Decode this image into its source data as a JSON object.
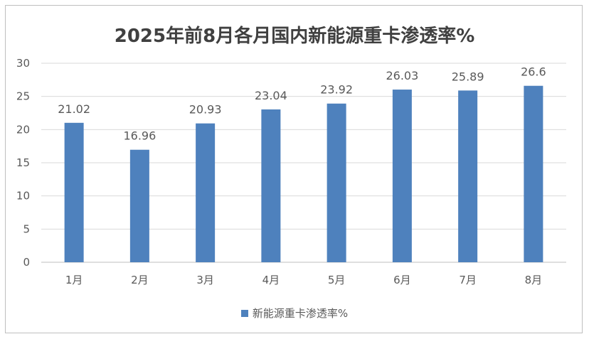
{
  "chart_data": {
    "type": "bar",
    "title": "2025年前8月各月国内新能源重卡渗透率%",
    "categories": [
      "1月",
      "2月",
      "3月",
      "4月",
      "5月",
      "6月",
      "7月",
      "8月"
    ],
    "series": [
      {
        "name": "新能源重卡渗透率%",
        "values": [
          21.02,
          16.96,
          20.93,
          23.04,
          23.92,
          26.03,
          25.89,
          26.6
        ],
        "labels": [
          "21.02",
          "16.96",
          "20.93",
          "23.04",
          "23.92",
          "26.03",
          "25.89",
          "26.6"
        ]
      }
    ],
    "ylim": [
      0,
      30
    ],
    "yticks": [
      "0",
      "5",
      "10",
      "15",
      "20",
      "25",
      "30"
    ],
    "xlabel": "",
    "ylabel": "",
    "grid": true,
    "legend_position": "bottom"
  },
  "colors": {
    "bar": "#4e81bd",
    "grid": "#d9d9d9",
    "axis": "#bfbfbf",
    "text": "#595959",
    "title": "#404040"
  }
}
